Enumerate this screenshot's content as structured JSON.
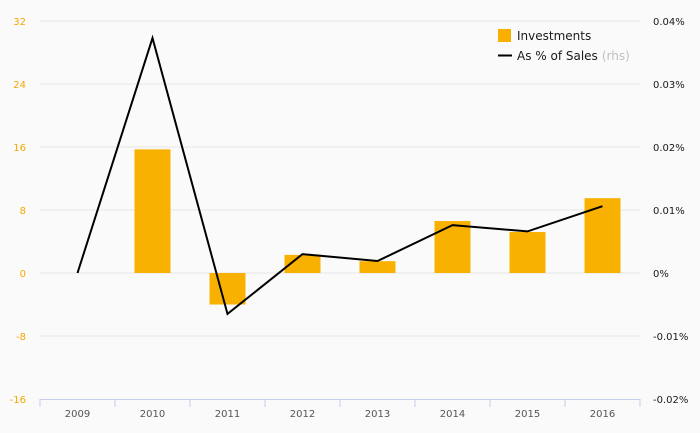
{
  "colors": {
    "background": "#fafafa",
    "bar": "#f9b100",
    "line": "#000000",
    "grid": "#e6e6e6",
    "axis": "#c7cde8",
    "left_tick": "#f5a800",
    "right_tick": "#1a1a1a"
  },
  "chart_data": {
    "type": "bar",
    "categories": [
      "2009",
      "2010",
      "2011",
      "2012",
      "2013",
      "2014",
      "2015",
      "2016"
    ],
    "series": [
      {
        "name": "Investments",
        "type": "bar",
        "axis": "left",
        "values": [
          0,
          15.7,
          -4.0,
          2.3,
          1.5,
          6.6,
          5.2,
          9.5
        ]
      },
      {
        "name": "As % of Sales",
        "name_suffix": "(rhs)",
        "type": "line",
        "axis": "right",
        "values": [
          0.0,
          0.0373,
          -0.0065,
          0.003,
          0.0019,
          0.0076,
          0.0066,
          0.0106
        ]
      }
    ],
    "y_left": {
      "ylim": [
        -16,
        32
      ],
      "ticks": [
        -16,
        -8,
        0,
        8,
        16,
        24,
        32
      ],
      "tick_labels": [
        "-16",
        "-8",
        "0",
        "8",
        "16",
        "24",
        "32"
      ]
    },
    "y_right": {
      "ylim": [
        -0.02,
        0.04
      ],
      "ticks": [
        -0.02,
        -0.01,
        0,
        0.01,
        0.02,
        0.03,
        0.04
      ],
      "tick_labels": [
        "-0.02%",
        "-0.01%",
        "0%",
        "0.01%",
        "0.02%",
        "0.03%",
        "0.04%"
      ]
    },
    "grid": true,
    "legend_position": "top-right",
    "title": "",
    "xlabel": "",
    "ylabel": ""
  }
}
